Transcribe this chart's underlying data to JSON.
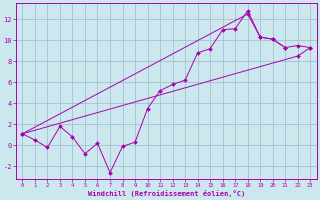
{
  "bg_color": "#cce8ee",
  "line_color": "#aa00aa",
  "grid_color": "#99bbcc",
  "xlabel": "Windchill (Refroidissement éolien,°C)",
  "xlim": [
    -0.5,
    23.5
  ],
  "ylim": [
    -3.2,
    13.5
  ],
  "yticks": [
    -2,
    0,
    2,
    4,
    6,
    8,
    10,
    12
  ],
  "xticks": [
    0,
    1,
    2,
    3,
    4,
    5,
    6,
    7,
    8,
    9,
    10,
    11,
    12,
    13,
    14,
    15,
    16,
    17,
    18,
    19,
    20,
    21,
    22,
    23
  ],
  "line1_x": [
    0,
    1,
    2,
    3,
    4,
    5,
    6,
    7,
    8,
    9,
    10,
    11,
    12,
    13,
    14,
    15,
    16,
    17,
    18,
    19,
    20,
    21
  ],
  "line1_y": [
    1.1,
    0.5,
    -0.2,
    1.8,
    0.8,
    -0.8,
    0.2,
    -2.6,
    -0.1,
    0.3,
    3.5,
    5.2,
    5.8,
    6.2,
    8.8,
    9.2,
    11.0,
    11.1,
    12.8,
    10.3,
    10.1,
    9.3
  ],
  "line2_x": [
    0,
    18,
    19,
    20,
    21,
    22,
    23
  ],
  "line2_y": [
    1.1,
    12.5,
    10.3,
    10.1,
    9.3,
    9.5,
    9.3
  ],
  "line3_x": [
    0,
    22,
    23
  ],
  "line3_y": [
    1.1,
    8.5,
    9.3
  ]
}
